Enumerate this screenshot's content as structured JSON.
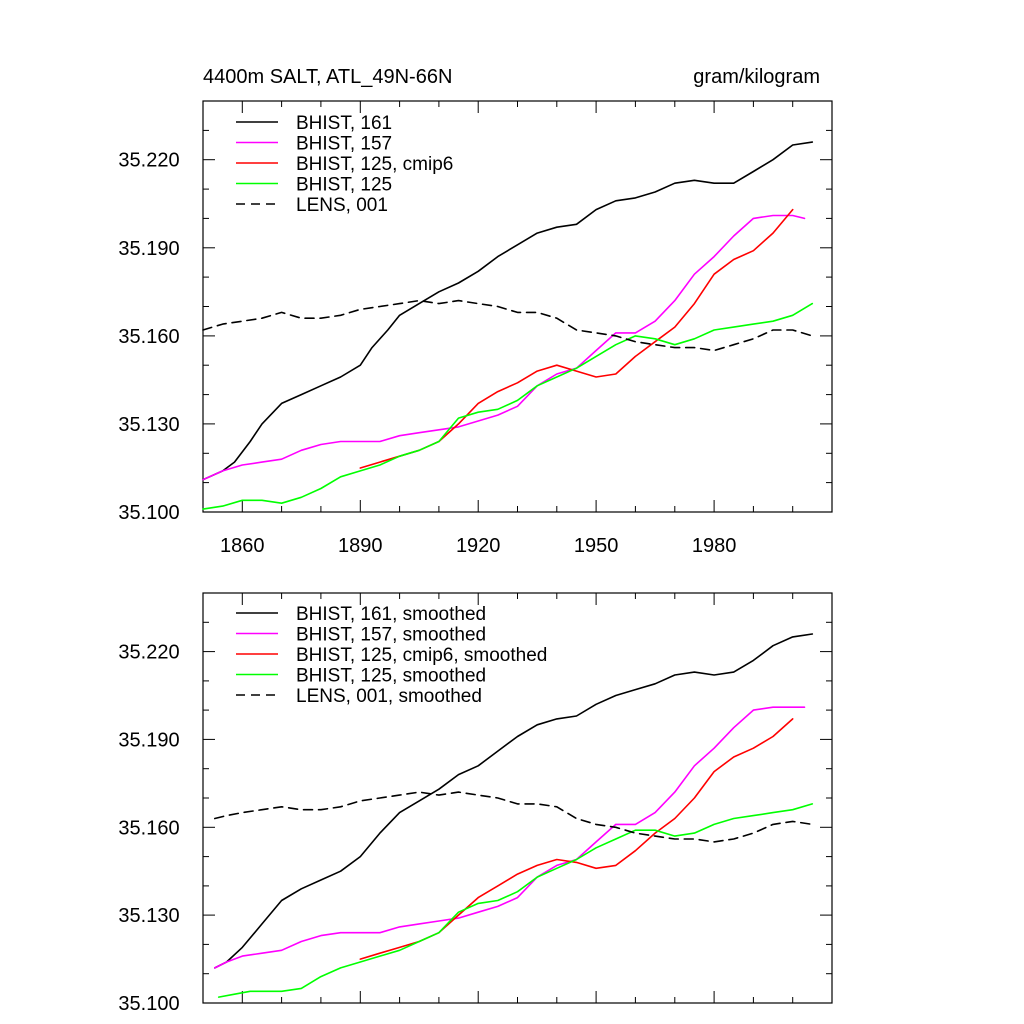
{
  "colors": {
    "black": "#000000",
    "magenta": "#ff00ff",
    "red": "#ff0000",
    "green": "#00ff00"
  },
  "chart_data": [
    {
      "type": "line",
      "title": "4400m SALT, ATL_49N-66N",
      "units": "gram/kilogram",
      "xlabel": "",
      "ylabel": "",
      "xlim": [
        1850,
        2010
      ],
      "ylim": [
        35.1,
        35.24
      ],
      "x_ticks": [
        1860,
        1890,
        1920,
        1950,
        1980
      ],
      "y_ticks": [
        35.1,
        35.13,
        35.16,
        35.19,
        35.22
      ],
      "x_tick_labels": [
        "1860",
        "1890",
        "1920",
        "1950",
        "1980"
      ],
      "y_tick_labels": [
        "35.100",
        "35.130",
        "35.160",
        "35.190",
        "35.220"
      ],
      "legend_position": "top-left",
      "series": [
        {
          "name": "BHIST, 161",
          "color": "#000000",
          "dash": "solid",
          "x": [
            1850,
            1855,
            1858,
            1862,
            1865,
            1870,
            1875,
            1880,
            1885,
            1890,
            1893,
            1897,
            1900,
            1905,
            1910,
            1915,
            1920,
            1925,
            1930,
            1935,
            1940,
            1945,
            1950,
            1955,
            1960,
            1965,
            1970,
            1975,
            1980,
            1985,
            1990,
            1995,
            2000,
            2005
          ],
          "values": [
            35.111,
            35.114,
            35.117,
            35.124,
            35.13,
            35.137,
            35.14,
            35.143,
            35.146,
            35.15,
            35.156,
            35.162,
            35.167,
            35.171,
            35.175,
            35.178,
            35.182,
            35.187,
            35.191,
            35.195,
            35.197,
            35.198,
            35.203,
            35.206,
            35.207,
            35.209,
            35.212,
            35.213,
            35.212,
            35.212,
            35.216,
            35.22,
            35.225,
            35.226
          ]
        },
        {
          "name": "BHIST, 157",
          "color": "#ff00ff",
          "dash": "solid",
          "x": [
            1850,
            1855,
            1860,
            1865,
            1870,
            1875,
            1880,
            1885,
            1890,
            1895,
            1900,
            1905,
            1910,
            1915,
            1920,
            1925,
            1930,
            1935,
            1940,
            1945,
            1950,
            1955,
            1960,
            1965,
            1970,
            1975,
            1980,
            1985,
            1990,
            1995,
            2000,
            2003
          ],
          "values": [
            35.111,
            35.114,
            35.116,
            35.117,
            35.118,
            35.121,
            35.123,
            35.124,
            35.124,
            35.124,
            35.126,
            35.127,
            35.128,
            35.129,
            35.131,
            35.133,
            35.136,
            35.143,
            35.147,
            35.149,
            35.155,
            35.161,
            35.161,
            35.165,
            35.172,
            35.181,
            35.187,
            35.194,
            35.2,
            35.201,
            35.201,
            35.2
          ]
        },
        {
          "name": "BHIST, 125, cmip6",
          "color": "#ff0000",
          "dash": "solid",
          "x": [
            1890,
            1895,
            1900,
            1905,
            1910,
            1915,
            1920,
            1925,
            1930,
            1935,
            1940,
            1945,
            1950,
            1955,
            1960,
            1965,
            1970,
            1975,
            1980,
            1985,
            1990,
            1995,
            2000
          ],
          "values": [
            35.115,
            35.117,
            35.119,
            35.121,
            35.124,
            35.13,
            35.137,
            35.141,
            35.144,
            35.148,
            35.15,
            35.148,
            35.146,
            35.147,
            35.153,
            35.158,
            35.163,
            35.171,
            35.181,
            35.186,
            35.189,
            35.195,
            35.203
          ]
        },
        {
          "name": "BHIST, 125",
          "color": "#00ff00",
          "dash": "solid",
          "x": [
            1850,
            1855,
            1860,
            1865,
            1870,
            1875,
            1880,
            1885,
            1890,
            1895,
            1900,
            1905,
            1910,
            1915,
            1920,
            1925,
            1930,
            1935,
            1940,
            1945,
            1950,
            1955,
            1960,
            1965,
            1970,
            1975,
            1980,
            1985,
            1990,
            1995,
            2000,
            2005
          ],
          "values": [
            35.101,
            35.102,
            35.104,
            35.104,
            35.103,
            35.105,
            35.108,
            35.112,
            35.114,
            35.116,
            35.119,
            35.121,
            35.124,
            35.132,
            35.134,
            35.135,
            35.138,
            35.143,
            35.146,
            35.149,
            35.153,
            35.157,
            35.16,
            35.159,
            35.157,
            35.159,
            35.162,
            35.163,
            35.164,
            35.165,
            35.167,
            35.171
          ]
        },
        {
          "name": "LENS, 001",
          "color": "#000000",
          "dash": "dashed",
          "x": [
            1850,
            1855,
            1860,
            1865,
            1870,
            1875,
            1880,
            1885,
            1890,
            1895,
            1900,
            1905,
            1910,
            1915,
            1920,
            1925,
            1930,
            1935,
            1940,
            1945,
            1950,
            1955,
            1960,
            1965,
            1970,
            1975,
            1980,
            1985,
            1990,
            1995,
            2000,
            2005
          ],
          "values": [
            35.162,
            35.164,
            35.165,
            35.166,
            35.168,
            35.166,
            35.166,
            35.167,
            35.169,
            35.17,
            35.171,
            35.172,
            35.171,
            35.172,
            35.171,
            35.17,
            35.168,
            35.168,
            35.166,
            35.162,
            35.161,
            35.16,
            35.158,
            35.157,
            35.156,
            35.156,
            35.155,
            35.157,
            35.159,
            35.162,
            35.162,
            35.16
          ]
        }
      ]
    },
    {
      "type": "line",
      "title": "",
      "units": "",
      "xlabel": "",
      "ylabel": "",
      "xlim": [
        1850,
        2010
      ],
      "ylim": [
        35.1,
        35.24
      ],
      "x_ticks": [
        1860,
        1890,
        1920,
        1950,
        1980
      ],
      "y_ticks": [
        35.1,
        35.13,
        35.16,
        35.19,
        35.22
      ],
      "x_tick_labels": [],
      "y_tick_labels": [
        "35.100",
        "35.130",
        "35.160",
        "35.190",
        "35.220"
      ],
      "legend_position": "top-left",
      "series": [
        {
          "name": "BHIST, 161, smoothed",
          "color": "#000000",
          "dash": "solid",
          "x": [
            1853,
            1856,
            1860,
            1865,
            1870,
            1875,
            1880,
            1885,
            1890,
            1895,
            1900,
            1905,
            1910,
            1915,
            1920,
            1925,
            1930,
            1935,
            1940,
            1945,
            1950,
            1955,
            1960,
            1965,
            1970,
            1975,
            1980,
            1985,
            1990,
            1995,
            2000,
            2005
          ],
          "values": [
            35.112,
            35.114,
            35.119,
            35.127,
            35.135,
            35.139,
            35.142,
            35.145,
            35.15,
            35.158,
            35.165,
            35.169,
            35.173,
            35.178,
            35.181,
            35.186,
            35.191,
            35.195,
            35.197,
            35.198,
            35.202,
            35.205,
            35.207,
            35.209,
            35.212,
            35.213,
            35.212,
            35.213,
            35.217,
            35.222,
            35.225,
            35.226
          ]
        },
        {
          "name": "BHIST, 157, smoothed",
          "color": "#ff00ff",
          "dash": "solid",
          "x": [
            1853,
            1856,
            1860,
            1865,
            1870,
            1875,
            1880,
            1885,
            1890,
            1895,
            1900,
            1905,
            1910,
            1915,
            1920,
            1925,
            1930,
            1935,
            1940,
            1945,
            1950,
            1955,
            1960,
            1965,
            1970,
            1975,
            1980,
            1985,
            1990,
            1995,
            2000,
            2003
          ],
          "values": [
            35.112,
            35.114,
            35.116,
            35.117,
            35.118,
            35.121,
            35.123,
            35.124,
            35.124,
            35.124,
            35.126,
            35.127,
            35.128,
            35.129,
            35.131,
            35.133,
            35.136,
            35.143,
            35.147,
            35.149,
            35.155,
            35.161,
            35.161,
            35.165,
            35.172,
            35.181,
            35.187,
            35.194,
            35.2,
            35.201,
            35.201,
            35.201
          ]
        },
        {
          "name": "BHIST, 125, cmip6, smoothed",
          "color": "#ff0000",
          "dash": "solid",
          "x": [
            1890,
            1895,
            1900,
            1905,
            1910,
            1915,
            1920,
            1925,
            1930,
            1935,
            1940,
            1945,
            1950,
            1955,
            1960,
            1965,
            1970,
            1975,
            1980,
            1985,
            1990,
            1995,
            2000
          ],
          "values": [
            35.115,
            35.117,
            35.119,
            35.121,
            35.124,
            35.13,
            35.136,
            35.14,
            35.144,
            35.147,
            35.149,
            35.148,
            35.146,
            35.147,
            35.152,
            35.158,
            35.163,
            35.17,
            35.179,
            35.184,
            35.187,
            35.191,
            35.197
          ]
        },
        {
          "name": "BHIST, 125, smoothed",
          "color": "#00ff00",
          "dash": "solid",
          "x": [
            1854,
            1858,
            1862,
            1866,
            1870,
            1875,
            1880,
            1885,
            1890,
            1895,
            1900,
            1905,
            1910,
            1915,
            1920,
            1925,
            1930,
            1935,
            1940,
            1945,
            1950,
            1955,
            1960,
            1965,
            1970,
            1975,
            1980,
            1985,
            1990,
            1995,
            2000,
            2005
          ],
          "values": [
            35.102,
            35.103,
            35.104,
            35.104,
            35.104,
            35.105,
            35.109,
            35.112,
            35.114,
            35.116,
            35.118,
            35.121,
            35.124,
            35.131,
            35.134,
            35.135,
            35.138,
            35.143,
            35.146,
            35.149,
            35.153,
            35.156,
            35.159,
            35.159,
            35.157,
            35.158,
            35.161,
            35.163,
            35.164,
            35.165,
            35.166,
            35.168
          ]
        },
        {
          "name": "LENS, 001, smoothed",
          "color": "#000000",
          "dash": "dashed",
          "x": [
            1853,
            1856,
            1860,
            1865,
            1870,
            1875,
            1880,
            1885,
            1890,
            1895,
            1900,
            1905,
            1910,
            1915,
            1920,
            1925,
            1930,
            1935,
            1940,
            1945,
            1950,
            1955,
            1960,
            1965,
            1970,
            1975,
            1980,
            1985,
            1990,
            1995,
            2000,
            2005
          ],
          "values": [
            35.163,
            35.164,
            35.165,
            35.166,
            35.167,
            35.166,
            35.166,
            35.167,
            35.169,
            35.17,
            35.171,
            35.172,
            35.171,
            35.172,
            35.171,
            35.17,
            35.168,
            35.168,
            35.167,
            35.163,
            35.161,
            35.16,
            35.158,
            35.157,
            35.156,
            35.156,
            35.155,
            35.156,
            35.158,
            35.161,
            35.162,
            35.161
          ]
        }
      ]
    }
  ]
}
